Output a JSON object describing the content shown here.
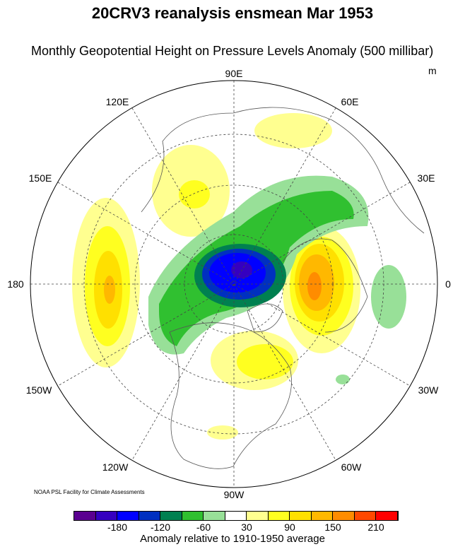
{
  "title": "20CRV3 reanalysis ensmean Mar 1953",
  "subtitle": "Monthly Geopotential Height on Pressure Levels Anomaly (500 millibar)",
  "unit": "m",
  "credit": "NOAA PSL Facility for Climate Assessments",
  "longitude_labels": {
    "n90e": "90E",
    "n60e": "60E",
    "n30e": "30E",
    "n0": "0",
    "n30w": "30W",
    "n60w": "60W",
    "n90w": "90W",
    "n120w": "120W",
    "n150w": "150W",
    "n180": "180",
    "n150e": "150E",
    "n120e": "120E"
  },
  "colorbar": {
    "colors": [
      "#5a0090",
      "#3500c0",
      "#0000ff",
      "#0030c0",
      "#008050",
      "#30c030",
      "#98e098",
      "#ffffff",
      "#ffff90",
      "#ffff20",
      "#ffe000",
      "#ffb800",
      "#ff8c00",
      "#ff4800",
      "#ff0000"
    ],
    "labels": [
      "-180",
      "-120",
      "-60",
      "30",
      "90",
      "150",
      "210"
    ],
    "title": "Anomaly relative to 1910-1950 average"
  }
}
